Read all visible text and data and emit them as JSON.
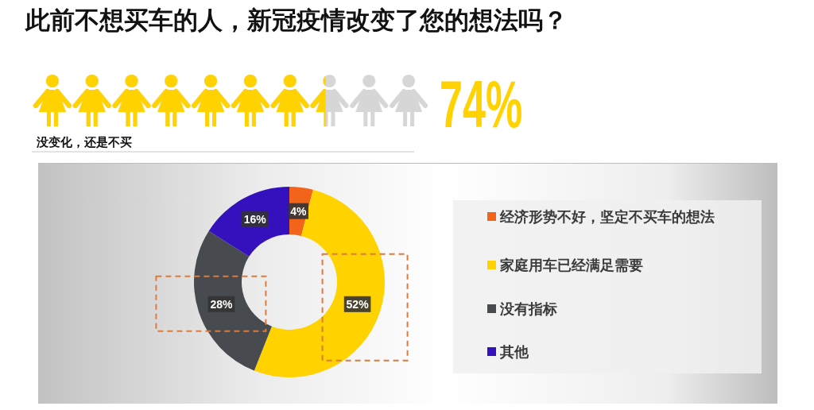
{
  "chart_data": [
    {
      "type": "other",
      "title": "此前不想买车的人，新冠疫情改变了您的想法吗？",
      "categories": [
        "没变化，还是不买"
      ],
      "values": [
        74
      ],
      "value_labels": [
        "74%"
      ],
      "colors": [
        "#ffd200"
      ]
    },
    {
      "type": "donut",
      "categories": [
        "经济形势不好，坚定不买车的想法",
        "家庭用车已经满足需要",
        "没有指标",
        "其他"
      ],
      "values": [
        4,
        52,
        28,
        16
      ],
      "value_labels": [
        "4%",
        "52%",
        "28%",
        "16%"
      ],
      "colors": [
        "#f26419",
        "#ffd200",
        "#474b4f",
        "#3511bd"
      ],
      "legend": "right"
    }
  ]
}
